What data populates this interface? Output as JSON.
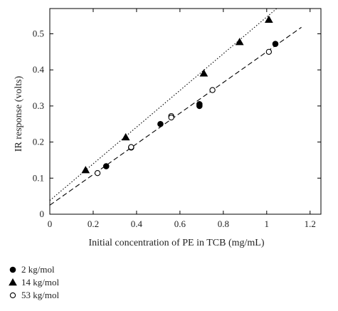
{
  "chart_data": {
    "type": "scatter",
    "xlabel": "Initial concentration of PE in TCB (mg/mL)",
    "ylabel": "IR response (volts)",
    "xlim": [
      0,
      1.25
    ],
    "ylim": [
      0,
      0.57
    ],
    "x_ticks": [
      "0",
      "0.2",
      "0.4",
      "0.6",
      "0.8",
      "1",
      "1.2"
    ],
    "y_ticks": [
      "0",
      "0.1",
      "0.2",
      "0.3",
      "0.4",
      "0.5"
    ],
    "x_tick_values": [
      0,
      0.2,
      0.4,
      0.6,
      0.8,
      1.0,
      1.2
    ],
    "y_tick_values": [
      0,
      0.1,
      0.2,
      0.3,
      0.4,
      0.5
    ],
    "legend_position": "below-left",
    "series": [
      {
        "name": "2 kg/mol",
        "marker": "filled-circle",
        "color": "#000000",
        "x": [
          0.26,
          0.375,
          0.51,
          0.69,
          0.69,
          1.04
        ],
        "y": [
          0.133,
          0.185,
          0.25,
          0.305,
          0.3,
          0.472
        ]
      },
      {
        "name": "14 kg/mol",
        "marker": "filled-triangle",
        "color": "#000000",
        "x": [
          0.165,
          0.35,
          0.71,
          0.875,
          1.01
        ],
        "y": [
          0.122,
          0.213,
          0.39,
          0.477,
          0.539
        ]
      },
      {
        "name": "53 kg/mol",
        "marker": "open-circle",
        "color": "#000000",
        "x": [
          0.22,
          0.375,
          0.56,
          0.56,
          0.75,
          1.01
        ],
        "y": [
          0.114,
          0.186,
          0.272,
          0.268,
          0.344,
          0.45
        ]
      }
    ],
    "fit_lines": [
      {
        "style": "dotted",
        "x": [
          0,
          1.05
        ],
        "y": [
          0.038,
          0.572
        ]
      },
      {
        "style": "dashed",
        "x": [
          0,
          1.16
        ],
        "y": [
          0.025,
          0.518
        ]
      }
    ]
  }
}
